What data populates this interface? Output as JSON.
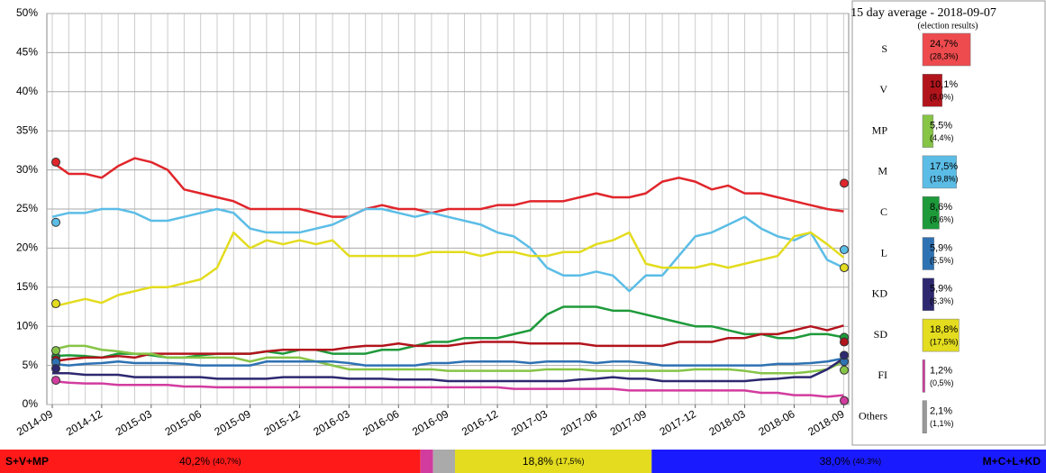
{
  "chart_data": [
    {
      "type": "line",
      "x": [
        "2014-09",
        "2014-10",
        "2014-11",
        "2014-12",
        "2015-01",
        "2015-02",
        "2015-03",
        "2015-04",
        "2015-05",
        "2015-06",
        "2015-07",
        "2015-08",
        "2015-09",
        "2015-10",
        "2015-11",
        "2015-12",
        "2016-01",
        "2016-02",
        "2016-03",
        "2016-04",
        "2016-05",
        "2016-06",
        "2016-07",
        "2016-08",
        "2016-09",
        "2016-10",
        "2016-11",
        "2016-12",
        "2017-01",
        "2017-02",
        "2017-03",
        "2017-04",
        "2017-05",
        "2017-06",
        "2017-07",
        "2017-08",
        "2017-09",
        "2017-10",
        "2017-11",
        "2017-12",
        "2018-01",
        "2018-02",
        "2018-03",
        "2018-04",
        "2018-05",
        "2018-06",
        "2018-07",
        "2018-08",
        "2018-09"
      ],
      "xticks": [
        "2014-09",
        "2014-12",
        "2015-03",
        "2015-06",
        "2015-09",
        "2015-12",
        "2016-03",
        "2016-06",
        "2016-09",
        "2016-12",
        "2017-03",
        "2017-06",
        "2017-09",
        "2017-12",
        "2018-03",
        "2018-06",
        "2018-09"
      ],
      "ylim": [
        0,
        50
      ],
      "yticks": [
        {
          "value": 0,
          "label": "0%"
        },
        {
          "value": 5,
          "label": "5%"
        },
        {
          "value": 10,
          "label": "10%"
        },
        {
          "value": 15,
          "label": "15%"
        },
        {
          "value": 20,
          "label": "20%"
        },
        {
          "value": 25,
          "label": "25%"
        },
        {
          "value": 30,
          "label": "30%"
        },
        {
          "value": 35,
          "label": "35%"
        },
        {
          "value": 40,
          "label": "40%"
        },
        {
          "value": 45,
          "label": "45%"
        },
        {
          "value": 50,
          "label": "50%"
        }
      ],
      "grid": true,
      "series": [
        {
          "name": "S",
          "color": "#e0262b",
          "election_start": 31.0,
          "election_end": 28.3,
          "values": [
            31,
            29.5,
            29.5,
            29,
            30.5,
            31.5,
            31,
            30,
            27.5,
            27,
            26.5,
            26,
            25,
            25,
            25,
            25,
            24.5,
            24,
            24,
            25,
            25.5,
            25,
            25,
            24.5,
            25,
            25,
            25,
            25.5,
            25.5,
            26,
            26,
            26,
            26.5,
            27,
            26.5,
            26.5,
            27,
            28.5,
            29,
            28.5,
            27.5,
            28,
            27,
            27,
            26.5,
            26,
            25.5,
            25,
            24.7
          ]
        },
        {
          "name": "M",
          "color": "#5bbde6",
          "election_start": 23.3,
          "election_end": 19.8,
          "values": [
            24,
            24.5,
            24.5,
            25,
            25,
            24.5,
            23.5,
            23.5,
            24,
            24.5,
            25,
            24.5,
            22.5,
            22,
            22,
            22,
            22.5,
            23,
            24,
            25,
            25,
            24.5,
            24,
            24.5,
            24,
            23.5,
            23,
            22,
            21.5,
            20,
            17.5,
            16.5,
            16.5,
            17,
            16.5,
            14.5,
            16.5,
            16.5,
            19,
            21.5,
            22,
            23,
            24,
            22.5,
            21.5,
            21,
            22,
            18.5,
            17.5
          ]
        },
        {
          "name": "SD",
          "color": "#e3dc1f",
          "election_start": 12.9,
          "election_end": 17.5,
          "values": [
            12.5,
            13,
            13.5,
            13,
            14,
            14.5,
            15,
            15,
            15.5,
            16,
            17.5,
            22,
            20,
            21,
            20.5,
            21,
            20.5,
            21,
            19,
            19,
            19,
            19,
            19,
            19.5,
            19.5,
            19.5,
            19,
            19.5,
            19.5,
            19,
            19,
            19.5,
            19.5,
            20.5,
            21,
            22,
            18,
            17.5,
            17.5,
            17.5,
            18,
            17.5,
            18,
            18.5,
            19,
            21.5,
            22,
            20.5,
            18.8
          ]
        },
        {
          "name": "C",
          "color": "#1e9a3a",
          "election_start": 6.1,
          "election_end": 8.6,
          "values": [
            6.2,
            6.3,
            6.2,
            6,
            6.5,
            6.5,
            6.3,
            6,
            6,
            6.3,
            6.5,
            6.5,
            6.5,
            6.8,
            6.5,
            7,
            7,
            6.5,
            6.5,
            6.5,
            7,
            7,
            7.5,
            8,
            8,
            8.5,
            8.5,
            8.5,
            9,
            9.5,
            11.5,
            12.5,
            12.5,
            12.5,
            12,
            12,
            11.5,
            11,
            10.5,
            10,
            10,
            9.5,
            9,
            9,
            8.5,
            8.5,
            9,
            9,
            8.6
          ]
        },
        {
          "name": "V",
          "color": "#b2141c",
          "election_start": 5.7,
          "election_end": 8.0,
          "values": [
            5.5,
            5.8,
            6,
            6,
            6.2,
            6,
            6.5,
            6.5,
            6.5,
            6.5,
            6.5,
            6.5,
            6.5,
            6.8,
            7,
            7,
            7,
            7,
            7.3,
            7.5,
            7.5,
            7.8,
            7.5,
            7.5,
            7.5,
            7.8,
            8,
            8,
            8,
            7.8,
            7.8,
            7.8,
            7.8,
            7.5,
            7.5,
            7.5,
            7.5,
            7.5,
            8,
            8,
            8,
            8.5,
            8.5,
            9,
            9,
            9.5,
            10,
            9.5,
            10.1
          ]
        },
        {
          "name": "MP",
          "color": "#86c446",
          "election_start": 6.9,
          "election_end": 4.4,
          "values": [
            7,
            7.5,
            7.5,
            7,
            6.8,
            6.5,
            6.5,
            6,
            6,
            6,
            6,
            6,
            5.5,
            6,
            6,
            6,
            5.5,
            5,
            4.5,
            4.5,
            4.5,
            4.5,
            4.5,
            4.5,
            4.3,
            4.3,
            4.3,
            4.3,
            4.3,
            4.3,
            4.5,
            4.5,
            4.5,
            4.3,
            4.3,
            4.3,
            4.3,
            4.3,
            4.3,
            4.5,
            4.5,
            4.5,
            4.3,
            4,
            4,
            4,
            4.2,
            4.5,
            5.5
          ]
        },
        {
          "name": "L",
          "color": "#2e72b3",
          "election_start": 5.4,
          "election_end": 5.5,
          "values": [
            5.2,
            5,
            5.2,
            5.3,
            5.5,
            5.3,
            5.3,
            5.3,
            5.2,
            5,
            5,
            5,
            5,
            5.5,
            5.5,
            5.5,
            5.5,
            5.5,
            5.3,
            5,
            5,
            5,
            5,
            5.3,
            5.3,
            5.5,
            5.5,
            5.5,
            5.5,
            5.3,
            5.5,
            5.5,
            5.5,
            5.3,
            5.5,
            5.5,
            5.3,
            5,
            5,
            5,
            5,
            5,
            5,
            5,
            5.2,
            5.2,
            5.3,
            5.5,
            5.9
          ]
        },
        {
          "name": "KD",
          "color": "#2d2870",
          "election_start": 4.6,
          "election_end": 6.3,
          "values": [
            4,
            4,
            3.8,
            3.8,
            3.8,
            3.5,
            3.5,
            3.5,
            3.5,
            3.5,
            3.3,
            3.3,
            3.3,
            3.3,
            3.5,
            3.5,
            3.5,
            3.5,
            3.3,
            3.3,
            3.3,
            3.2,
            3.2,
            3.2,
            3,
            3,
            3,
            3,
            3,
            3,
            3,
            3,
            3.2,
            3.3,
            3.5,
            3.3,
            3.3,
            3,
            3,
            3,
            3,
            3,
            3,
            3.2,
            3.3,
            3.5,
            3.5,
            4.5,
            5.9
          ]
        },
        {
          "name": "FI",
          "color": "#d23c9f",
          "election_start": 3.1,
          "election_end": 0.5,
          "values": [
            3,
            2.8,
            2.7,
            2.7,
            2.5,
            2.5,
            2.5,
            2.5,
            2.3,
            2.3,
            2.2,
            2.2,
            2.2,
            2.2,
            2.2,
            2.2,
            2.2,
            2.2,
            2.2,
            2.2,
            2.2,
            2.2,
            2.2,
            2.2,
            2.2,
            2.2,
            2.2,
            2.2,
            2,
            2,
            2,
            2,
            2,
            2,
            2,
            1.8,
            1.8,
            1.8,
            1.8,
            1.8,
            1.8,
            1.8,
            1.8,
            1.5,
            1.5,
            1.2,
            1.2,
            1,
            1.2
          ]
        }
      ]
    },
    {
      "type": "bar",
      "title": "15 day average - 2018-09-07",
      "subtitle": "(election results)",
      "categories": [
        "S",
        "V",
        "MP",
        "M",
        "C",
        "L",
        "KD",
        "SD",
        "FI",
        "Others"
      ],
      "values": [
        24.7,
        10.1,
        5.5,
        17.5,
        8.6,
        5.9,
        5.9,
        18.8,
        1.2,
        2.1
      ],
      "value_labels": [
        "24,7%",
        "10,1%",
        "5,5%",
        "17,5%",
        "8,6%",
        "5,9%",
        "5,9%",
        "18,8%",
        "1,2%",
        "2,1%"
      ],
      "election_values": [
        28.3,
        8.0,
        4.4,
        19.8,
        8.6,
        5.5,
        6.3,
        17.5,
        0.5,
        1.1
      ],
      "election_labels": [
        "(28,3%)",
        "(8,0%)",
        "(4,4%)",
        "(19,8%)",
        "(8,6%)",
        "(5,5%)",
        "(6,3%)",
        "(17,5%)",
        "(0,5%)",
        "(1,1%)"
      ],
      "colors": [
        "#ee4b4e",
        "#b2141c",
        "#86c446",
        "#5bbde6",
        "#1e9a3a",
        "#2e72b3",
        "#2d2870",
        "#e3dc1f",
        "#d23c9f",
        "#999999"
      ]
    },
    {
      "type": "stacked-bar",
      "blocs": [
        {
          "name": "S+V+MP",
          "value": 40.2,
          "value_label": "40,2%",
          "election": 40.7,
          "election_label": "(40,7%)",
          "color": "#ff1a1a"
        },
        {
          "name": "M+C+L+KD",
          "value": 38.0,
          "value_label": "38,0%",
          "election": 40.3,
          "election_label": "(40,3%)",
          "color": "#1a1aff"
        }
      ]
    }
  ]
}
